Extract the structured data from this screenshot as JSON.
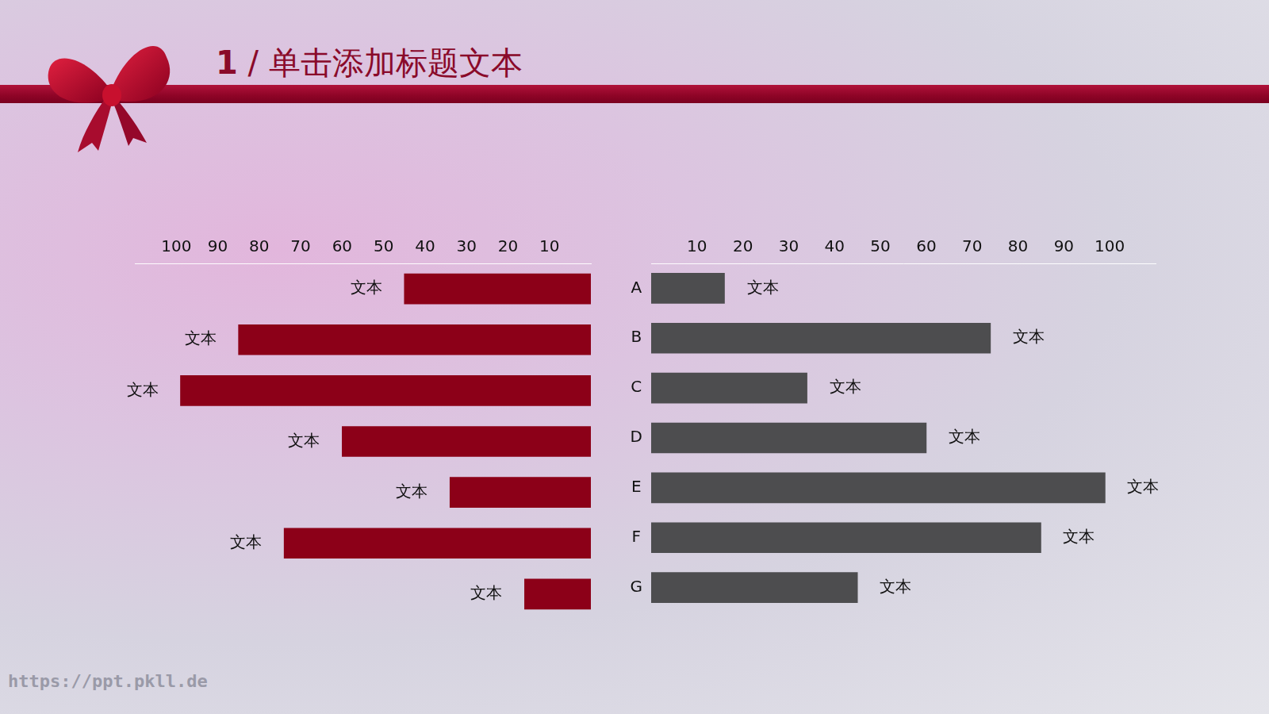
{
  "title": "1 / 单击添加标题文本",
  "footer": "https://ppt.pkll.de",
  "chart_data": [
    {
      "type": "bar",
      "orientation": "horizontal",
      "categories": [
        "A",
        "B",
        "C",
        "D",
        "E",
        "F",
        "G"
      ],
      "values": [
        45,
        85,
        99,
        60,
        34,
        74,
        16
      ],
      "bar_texts": [
        "文本",
        "文本",
        "文本",
        "文本",
        "文本",
        "文本",
        "文本"
      ],
      "color": "#8c0018",
      "xlim": [
        110,
        0
      ],
      "xticks": [
        10,
        20,
        30,
        40,
        50,
        60,
        70,
        80,
        90,
        100
      ],
      "grid": false
    },
    {
      "type": "bar",
      "orientation": "horizontal",
      "categories": [
        "A",
        "B",
        "C",
        "D",
        "E",
        "F",
        "G"
      ],
      "values": [
        16,
        74,
        34,
        60,
        99,
        85,
        45
      ],
      "bar_texts": [
        "文本",
        "文本",
        "文本",
        "文本",
        "文本",
        "文本",
        "文本"
      ],
      "color": "#4d4d4f",
      "xlim": [
        0,
        110
      ],
      "xticks": [
        10,
        20,
        30,
        40,
        50,
        60,
        70,
        80,
        90,
        100
      ],
      "grid": false
    }
  ]
}
